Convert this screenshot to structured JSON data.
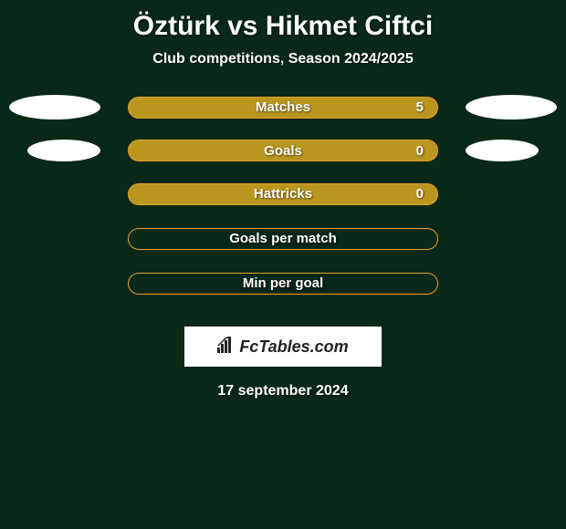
{
  "title": "Öztürk vs Hikmet Ciftci",
  "subtitle": "Club competitions, Season 2024/2025",
  "stats": [
    {
      "label": "Matches",
      "value": "5",
      "filled": true,
      "leftEllipse": true,
      "rightEllipse": true,
      "smallerEllipse": false
    },
    {
      "label": "Goals",
      "value": "0",
      "filled": true,
      "leftEllipse": true,
      "rightEllipse": true,
      "smallerEllipse": true
    },
    {
      "label": "Hattricks",
      "value": "0",
      "filled": true,
      "leftEllipse": false,
      "rightEllipse": false,
      "smallerEllipse": false
    },
    {
      "label": "Goals per match",
      "value": "",
      "filled": false,
      "leftEllipse": false,
      "rightEllipse": false,
      "smallerEllipse": false
    },
    {
      "label": "Min per goal",
      "value": "",
      "filled": false,
      "leftEllipse": false,
      "rightEllipse": false,
      "smallerEllipse": false
    }
  ],
  "logo": {
    "text": "FcTables.com"
  },
  "date": "17 september 2024",
  "colors": {
    "background": "#0a2818",
    "barBorder": "#e8a030",
    "barFill": "#b9971f",
    "text": "#ffffff",
    "logoBg": "#ffffff",
    "logoText": "#222222"
  }
}
